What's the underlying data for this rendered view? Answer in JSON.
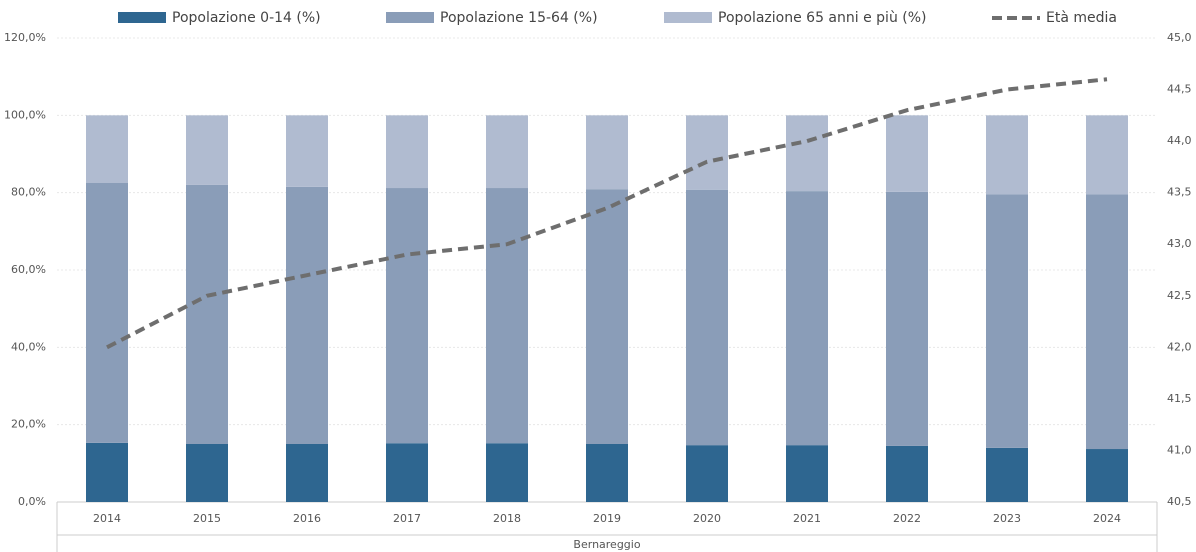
{
  "chart_data": {
    "type": "bar_line",
    "categories": [
      "2014",
      "2015",
      "2016",
      "2017",
      "2018",
      "2019",
      "2020",
      "2021",
      "2022",
      "2023",
      "2024"
    ],
    "x_label": "Bernareggio",
    "stacked": true,
    "series": [
      {
        "name": "Popolazione 0-14 (%)",
        "color": "#2e6690",
        "values": [
          15.3,
          15.0,
          15.0,
          15.2,
          15.2,
          15.0,
          14.7,
          14.7,
          14.5,
          14.0,
          13.7
        ]
      },
      {
        "name": "Popolazione 15-64 (%)",
        "color": "#8a9db8",
        "values": [
          67.2,
          67.0,
          66.5,
          66.0,
          66.0,
          65.9,
          66.0,
          65.7,
          65.7,
          65.6,
          65.9
        ]
      },
      {
        "name": "Popolazione 65 anni e più (%)",
        "color": "#b0bbd0",
        "values": [
          17.5,
          18.0,
          18.5,
          18.8,
          18.8,
          19.1,
          19.3,
          19.6,
          19.8,
          20.4,
          20.4
        ]
      },
      {
        "name": "Età media",
        "color": "#6e6e6e",
        "axis": "y2",
        "line": true,
        "dashed": true,
        "values": [
          42.0,
          42.5,
          42.7,
          42.9,
          43.0,
          43.35,
          43.8,
          44.0,
          44.3,
          44.5,
          44.6
        ]
      }
    ],
    "ylim": [
      0,
      120
    ],
    "yticks": [
      {
        "value": 0,
        "label": "0,0%"
      },
      {
        "value": 20,
        "label": "20,0%"
      },
      {
        "value": 40,
        "label": "40,0%"
      },
      {
        "value": 60,
        "label": "60,0%"
      },
      {
        "value": 80,
        "label": "80,0%"
      },
      {
        "value": 100,
        "label": "100,0%"
      },
      {
        "value": 120,
        "label": "120,0%"
      }
    ],
    "y2lim": [
      40.5,
      45
    ],
    "y2ticks": [
      {
        "value": 40.5,
        "label": "40,5"
      },
      {
        "value": 41,
        "label": "41,0"
      },
      {
        "value": 41.5,
        "label": "41,5"
      },
      {
        "value": 42,
        "label": "42,0"
      },
      {
        "value": 42.5,
        "label": "42,5"
      },
      {
        "value": 43,
        "label": "43,0"
      },
      {
        "value": 43.5,
        "label": "43,5"
      },
      {
        "value": 44,
        "label": "44,0"
      },
      {
        "value": 44.5,
        "label": "44,5"
      },
      {
        "value": 45,
        "label": "45,0"
      }
    ],
    "grid": true,
    "legend": "top"
  }
}
